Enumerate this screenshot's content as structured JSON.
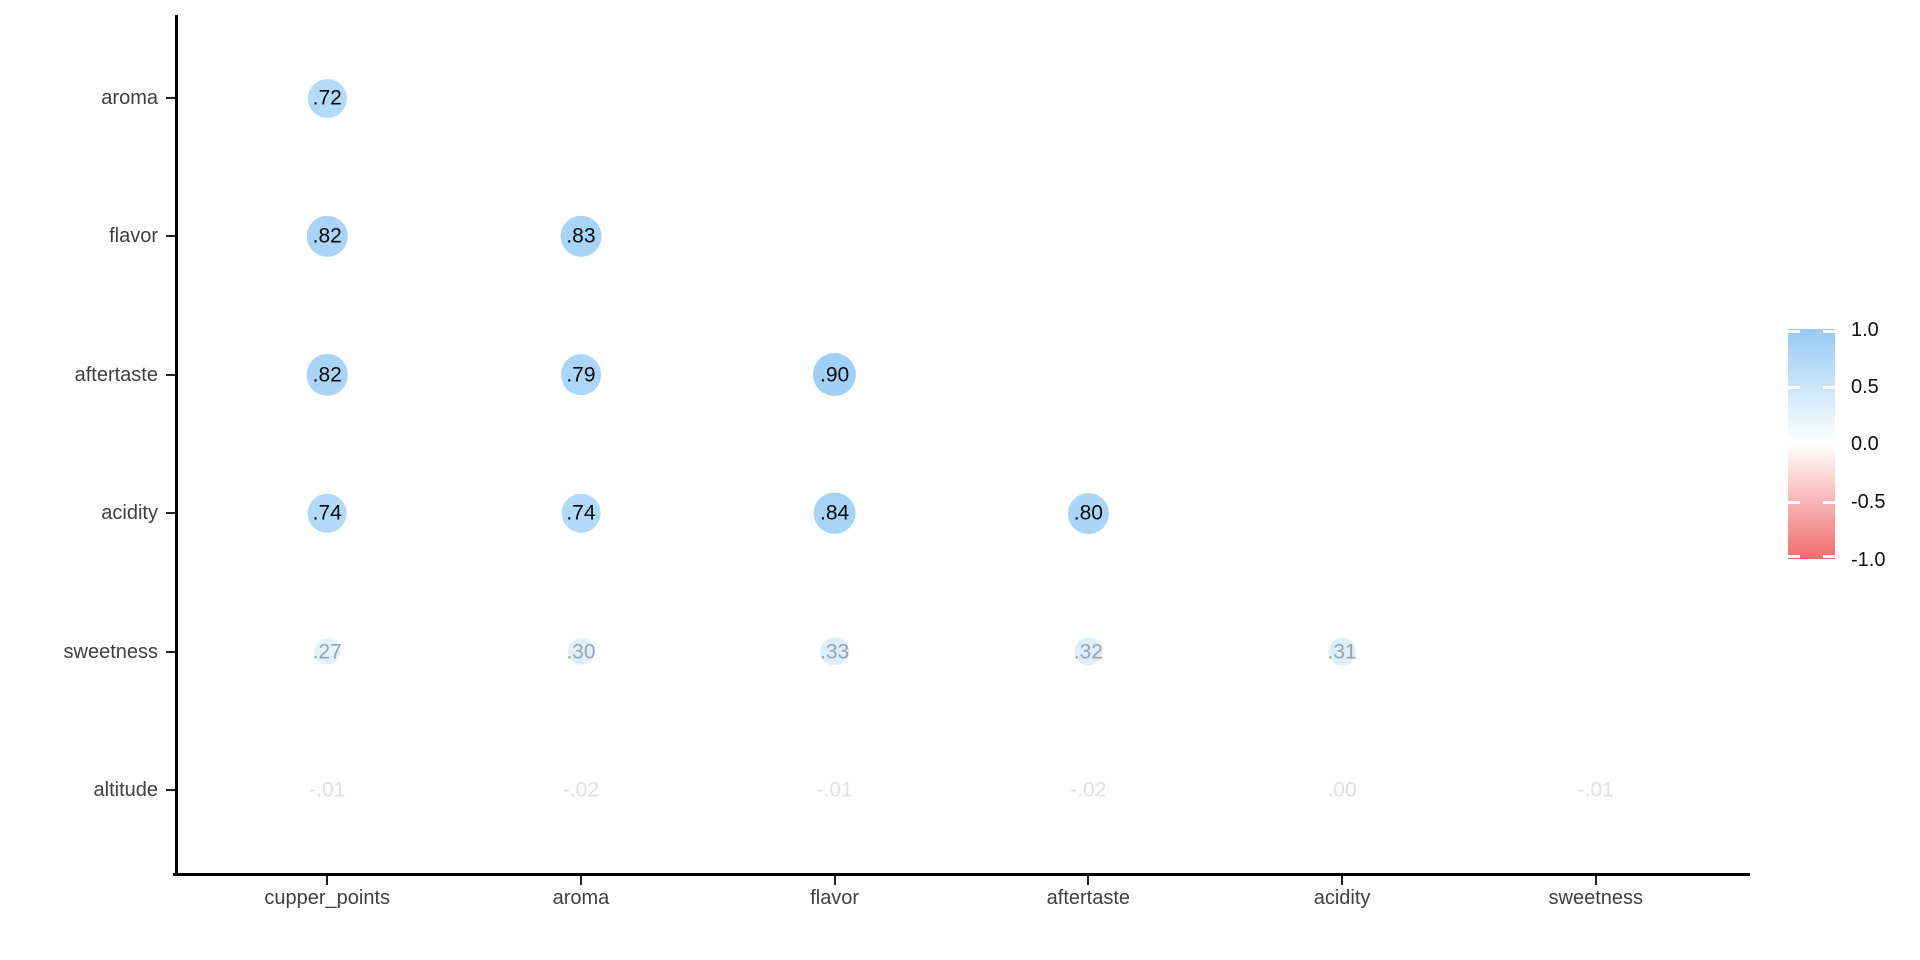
{
  "figure": {
    "background": "#FFFFFF",
    "description": "Lower-triangular correlation matrix bubble plot"
  },
  "chart_data": {
    "type": "heatmap",
    "subtype": "correlation-bubble-matrix",
    "title": "",
    "xlabel": "",
    "ylabel": "",
    "grid": false,
    "x_categories": [
      "cupper_points",
      "aroma",
      "flavor",
      "aftertaste",
      "acidity",
      "sweetness"
    ],
    "y_categories": [
      "aroma",
      "flavor",
      "aftertaste",
      "acidity",
      "sweetness",
      "altitude"
    ],
    "series": [
      {
        "name": "aroma",
        "values": [
          0.72,
          null,
          null,
          null,
          null,
          null
        ],
        "labels": [
          ".72",
          null,
          null,
          null,
          null,
          null
        ]
      },
      {
        "name": "flavor",
        "values": [
          0.82,
          0.83,
          null,
          null,
          null,
          null
        ],
        "labels": [
          ".82",
          ".83",
          null,
          null,
          null,
          null
        ]
      },
      {
        "name": "aftertaste",
        "values": [
          0.82,
          0.79,
          0.9,
          null,
          null,
          null
        ],
        "labels": [
          ".82",
          ".79",
          ".90",
          null,
          null,
          null
        ]
      },
      {
        "name": "acidity",
        "values": [
          0.74,
          0.74,
          0.84,
          0.8,
          null,
          null
        ],
        "labels": [
          ".74",
          ".74",
          ".84",
          ".80",
          null,
          null
        ]
      },
      {
        "name": "sweetness",
        "values": [
          0.27,
          0.3,
          0.33,
          0.32,
          0.31,
          null
        ],
        "labels": [
          ".27",
          ".30",
          ".33",
          ".32",
          ".31",
          null
        ]
      },
      {
        "name": "altitude",
        "values": [
          -0.01,
          -0.02,
          -0.01,
          -0.02,
          0.0,
          -0.01
        ],
        "labels": [
          "-.01",
          "-.02",
          "-.01",
          "-.02",
          ".00",
          "-.01"
        ]
      }
    ],
    "value_range": [
      -1,
      1
    ],
    "legend": {
      "position": "right",
      "tick_labels": [
        "1.0",
        "0.5",
        "0.0",
        "-0.5",
        "-1.0"
      ],
      "tick_values": [
        1.0,
        0.5,
        0.0,
        -0.5,
        -1.0
      ]
    },
    "colors": {
      "positive_end": "#96CBF5",
      "zero": "#FFFFFF",
      "negative_end": "#F06C6C",
      "strong_label": "#0B0B0B",
      "mid_label": "#9BA1A8",
      "weak_label": "#E0E0E0",
      "axis": "#000000",
      "axis_text": "#404040"
    }
  }
}
